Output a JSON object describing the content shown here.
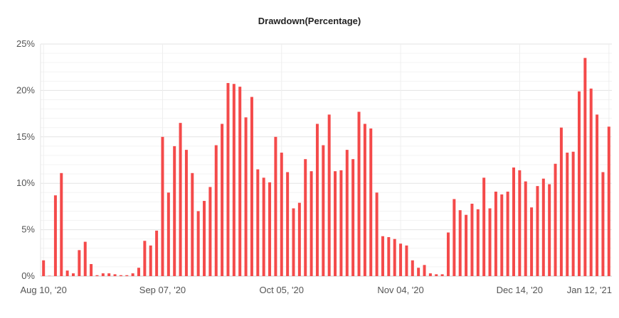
{
  "chart_data": {
    "type": "bar",
    "title": "Drawdown(Percentage)",
    "xlabel": "",
    "ylabel": "",
    "ylim": [
      0,
      25
    ],
    "yticks": [
      "0%",
      "5%",
      "10%",
      "15%",
      "20%",
      "25%"
    ],
    "xticks": [
      "Aug 10, '20",
      "Sep 07, '20",
      "Oct 05, '20",
      "Nov 04, '20",
      "Dec 14, '20",
      "Jan 12, '21"
    ],
    "grid": true,
    "legend": "none",
    "bar_color": "#f44a4a",
    "values": [
      1.7,
      0,
      8.7,
      11.1,
      0.6,
      0.3,
      2.8,
      3.7,
      1.3,
      0.1,
      0.3,
      0.3,
      0.2,
      0.1,
      0.1,
      0.3,
      0.9,
      3.8,
      3.3,
      4.9,
      15.0,
      9.0,
      14.0,
      16.5,
      13.6,
      11.1,
      7.0,
      8.1,
      9.6,
      14.1,
      16.4,
      20.8,
      20.7,
      20.4,
      17.1,
      19.3,
      11.5,
      10.6,
      10.1,
      15.0,
      13.3,
      11.2,
      7.3,
      7.9,
      12.6,
      11.3,
      16.4,
      14.1,
      17.4,
      11.3,
      11.4,
      13.6,
      12.6,
      17.7,
      16.4,
      15.9,
      9.0,
      4.3,
      4.2,
      4.0,
      3.5,
      3.3,
      1.7,
      0.9,
      1.2,
      0.3,
      0.2,
      0.2,
      4.7,
      8.3,
      7.1,
      6.6,
      7.8,
      7.2,
      10.6,
      7.3,
      9.1,
      8.8,
      9.1,
      11.7,
      11.4,
      10.2,
      7.4,
      9.7,
      10.5,
      9.9,
      12.1,
      16.0,
      13.3,
      13.4,
      19.9,
      23.5,
      20.2,
      17.4,
      11.2,
      16.1
    ]
  }
}
